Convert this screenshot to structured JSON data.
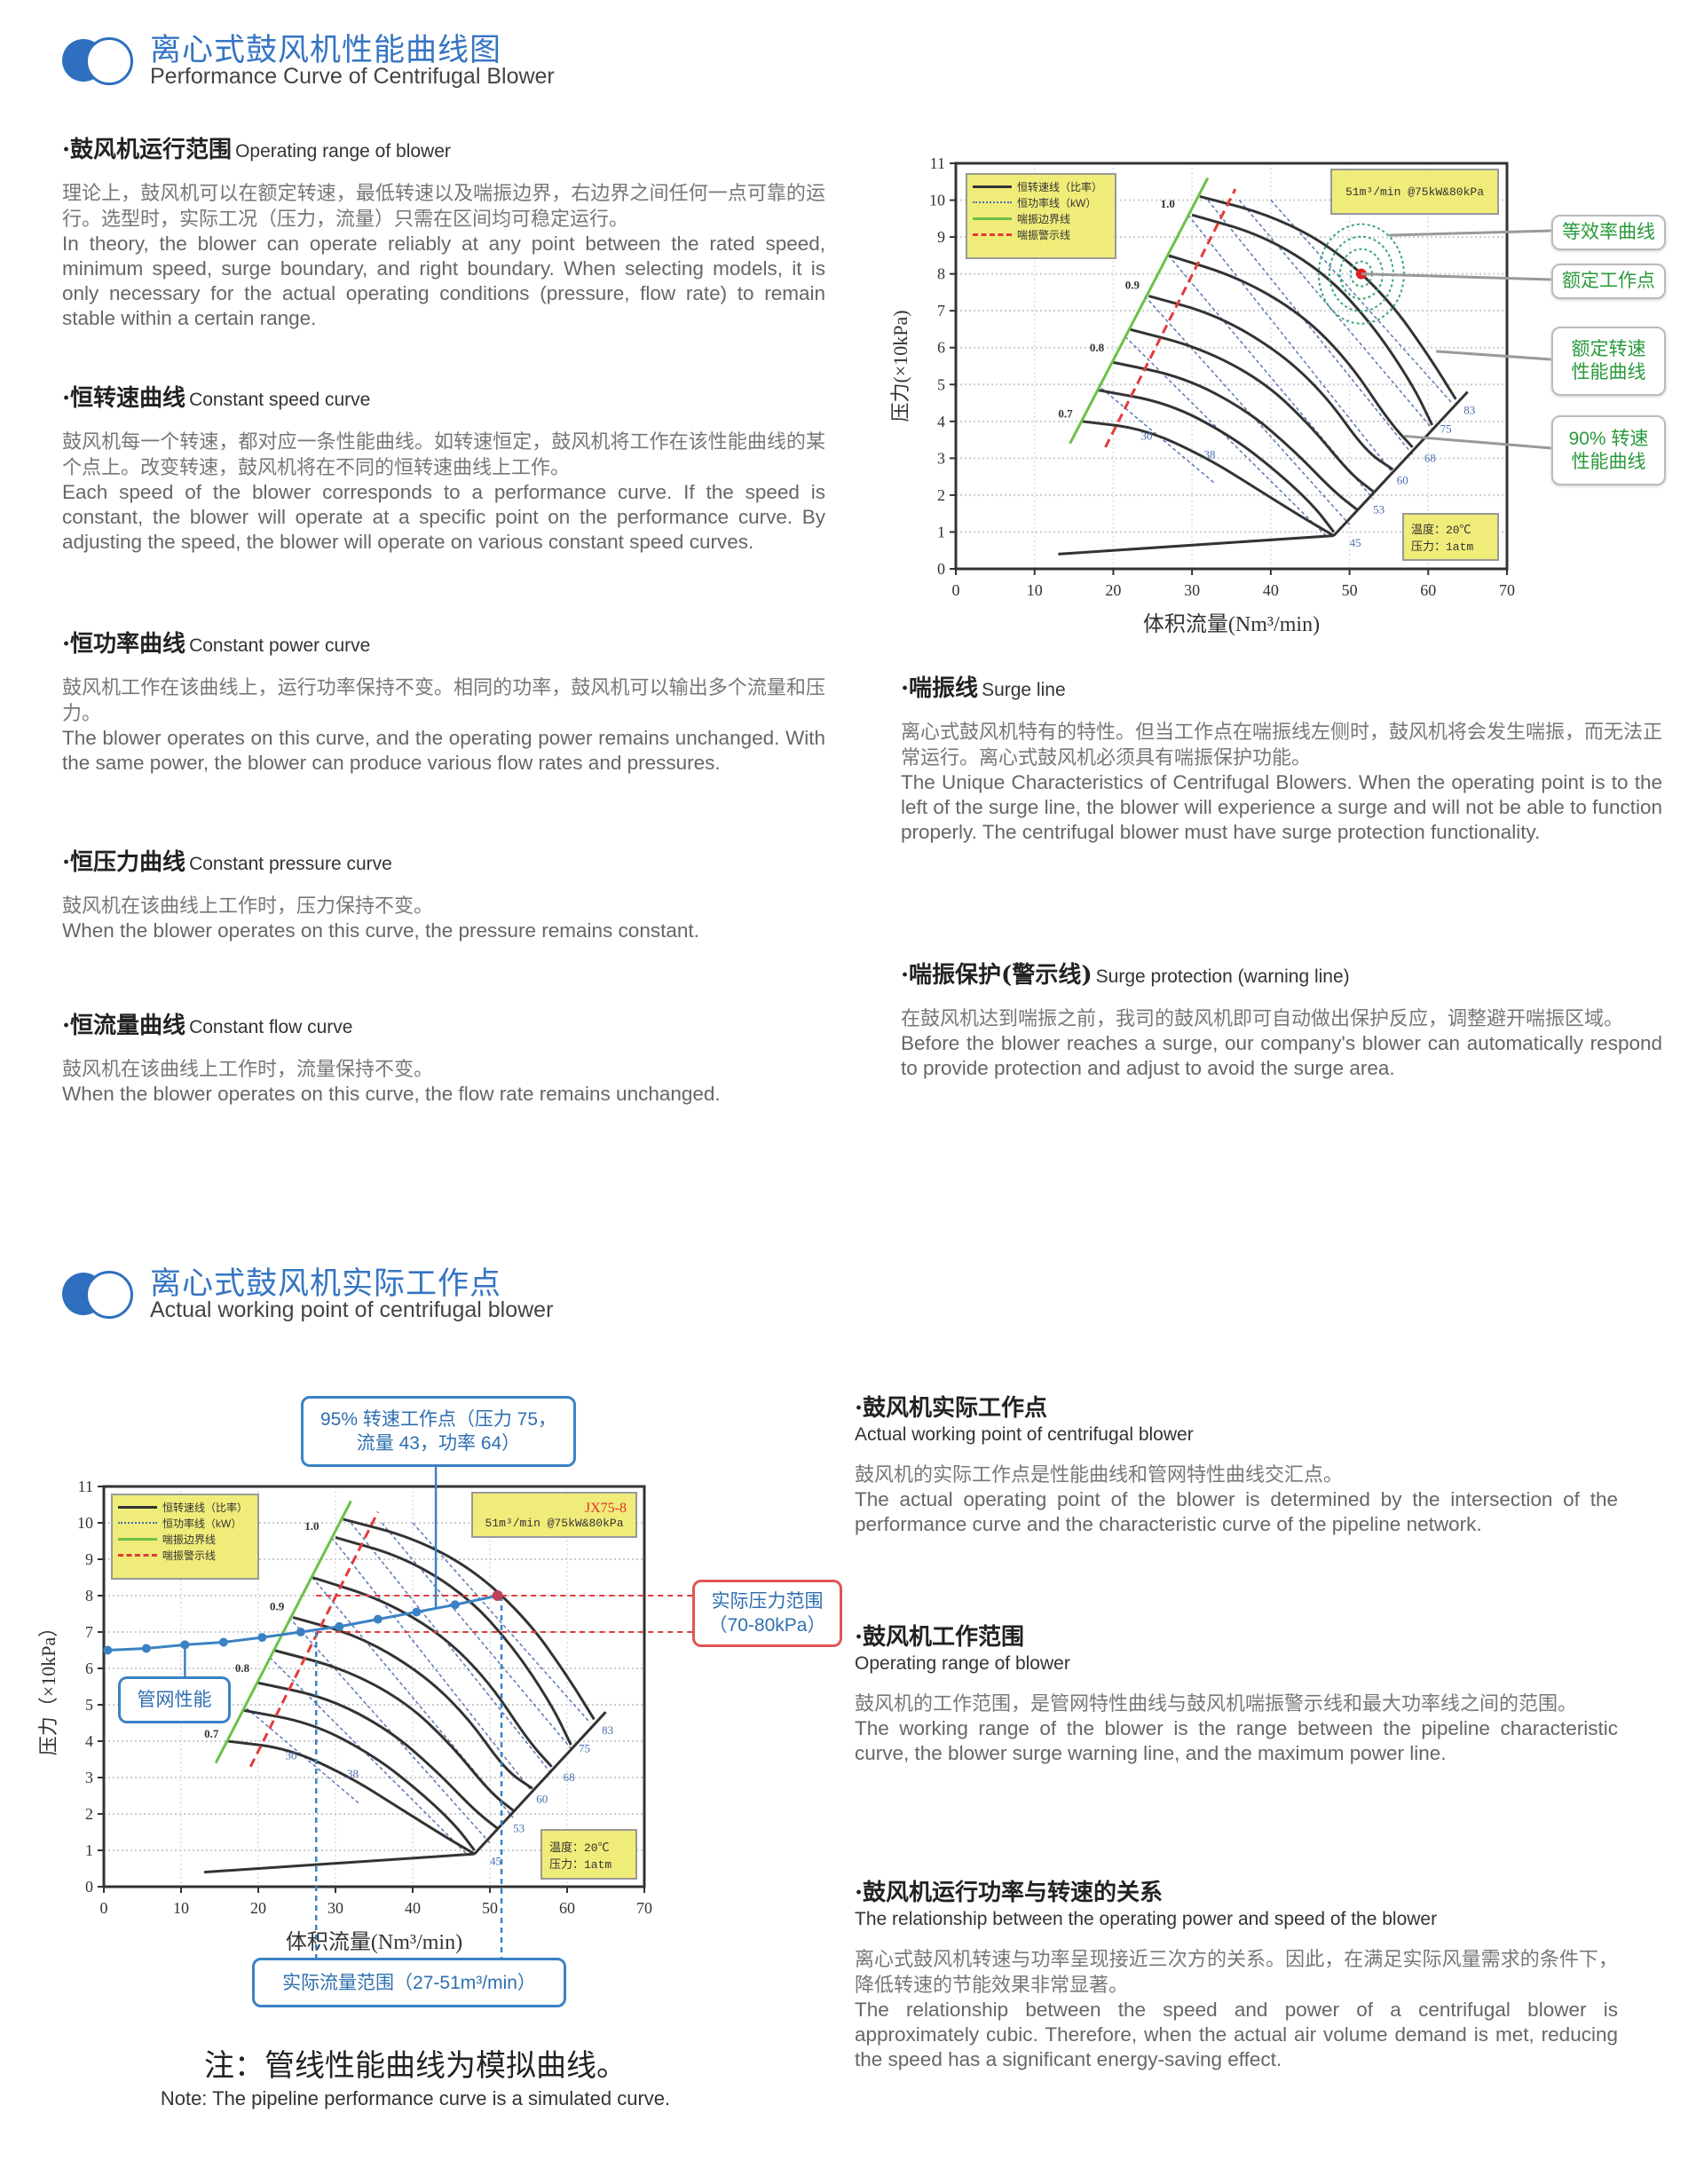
{
  "header1": {
    "title": "离心式鼓风机性能曲线图",
    "subtitle": "Performance Curve of Centrifugal Blower"
  },
  "left_sections": [
    {
      "title_zh": "·鼓风机运行范围",
      "title_en": "Operating range of blower",
      "body_zh": "理论上，鼓风机可以在额定转速，最低转速以及喘振边界，右边界之间任何一点可靠的运行。选型时，实际工况（压力，流量）只需在区间均可稳定运行。",
      "body_en": "In theory, the blower can operate reliably at any point between the rated speed, minimum speed, surge boundary, and right boundary. When selecting models, it is only necessary for the actual operating conditions (pressure, flow rate) to remain stable within a certain range."
    },
    {
      "title_zh": "·恒转速曲线",
      "title_en": "Constant speed curve",
      "body_zh": "鼓风机每一个转速，都对应一条性能曲线。如转速恒定，鼓风机将工作在该性能曲线的某个点上。改变转速，鼓风机将在不同的恒转速曲线上工作。",
      "body_en": "Each speed of the blower corresponds to a performance curve. If the speed is constant, the blower will operate at a specific point on the performance curve. By adjusting the speed, the blower will operate on various constant speed curves."
    },
    {
      "title_zh": "·恒功率曲线",
      "title_en": "Constant power curve",
      "body_zh": "鼓风机工作在该曲线上，运行功率保持不变。相同的功率，鼓风机可以输出多个流量和压力。",
      "body_en": "The blower operates on this curve, and the operating power remains unchanged. With the same power, the blower can produce various flow rates and pressures."
    },
    {
      "title_zh": "·恒压力曲线",
      "title_en": "Constant pressure curve",
      "body_zh": "鼓风机在该曲线上工作时，压力保持不变。",
      "body_en": "When the blower operates on this curve, the pressure remains constant."
    },
    {
      "title_zh": "·恒流量曲线",
      "title_en": "Constant flow curve",
      "body_zh": "鼓风机在该曲线上工作时，流量保持不变。",
      "body_en": "When the blower operates on this curve, the flow rate remains unchanged."
    }
  ],
  "right_sections": [
    {
      "title_zh": "·喘振线",
      "title_en": "Surge line",
      "body_zh": "离心式鼓风机特有的特性。但当工作点在喘振线左侧时，鼓风机将会发生喘振，而无法正常运行。离心式鼓风机必须具有喘振保护功能。",
      "body_en": "The Unique Characteristics of Centrifugal Blowers. When the operating point is to the left of the surge line, the blower will experience a surge and will not be able to function properly. The centrifugal blower must have surge protection functionality."
    },
    {
      "title_zh": "·喘振保护(警示线)",
      "title_en": "Surge protection (warning line)",
      "body_zh": "在鼓风机达到喘振之前，我司的鼓风机即可自动做出保护反应，调整避开喘振区域。",
      "body_en": "Before the blower reaches a surge, our company's blower can automatically respond to provide protection and adjust to avoid the surge area."
    }
  ],
  "header2": {
    "title": "离心式鼓风机实际工作点",
    "subtitle": "Actual working point of centrifugal blower"
  },
  "bottom_sections": [
    {
      "title_zh": "·鼓风机实际工作点",
      "title_en": "Actual working point of centrifugal blower",
      "body_zh": "鼓风机的实际工作点是性能曲线和管网特性曲线交汇点。",
      "body_en": "The actual operating point of the blower is determined by the intersection of the performance curve and the characteristic curve of the pipeline network."
    },
    {
      "title_zh": "·鼓风机工作范围",
      "title_en": "Operating range of blower",
      "body_zh": "鼓风机的工作范围，是管网特性曲线与鼓风机喘振警示线和最大功率线之间的范围。",
      "body_en": "The working range of the blower is the range between the pipeline characteristic curve, the blower surge warning line, and the maximum power line."
    },
    {
      "title_zh": "·鼓风机运行功率与转速的关系",
      "title_en": "The relationship between the operating power and speed of the blower",
      "body_zh": "离心式鼓风机转速与功率呈现接近三次方的关系。因此，在满足实际风量需求的条件下，降低转速的节能效果非常显著。",
      "body_en": "The relationship between the speed and power of a centrifugal blower is approximately cubic. Therefore, when the actual air volume demand is met, reducing the speed has a significant energy-saving effect."
    }
  ],
  "note": {
    "zh": "注：管线性能曲线为模拟曲线。",
    "en": "Note: The pipeline performance curve is a simulated curve."
  },
  "annotations_top": {
    "efficiency": "等效率曲线",
    "rated_point": "额定工作点",
    "rated_speed": "额定转速\n性能曲线",
    "speed_90": "90% 转速\n性能曲线"
  },
  "annotations_bottom": {
    "working_point": "95% 转速工作点（压力 75，\n流量 43，功率 64）",
    "pressure_range": "实际压力范围\n（70-80kPa）",
    "pipeline": "管网性能",
    "flow_range": "实际流量范围（27-51m³/min）"
  },
  "colors": {
    "accent": "#3575c3",
    "surge_boundary": "#6cc04a",
    "surge_warning": "#e23b3b",
    "pipeline": "#3b82c4",
    "legend_bg": "#f0ec7a",
    "annotation_text": "#2a9a3c"
  },
  "chart_data": [
    {
      "type": "line",
      "xlabel": "体积流量(Nm³/min)",
      "ylabel": "压力(×10kPa)",
      "xlim": [
        0,
        70
      ],
      "ylim": [
        0,
        11
      ],
      "xticks": [
        0,
        10,
        20,
        30,
        40,
        50,
        60,
        70
      ],
      "yticks": [
        0,
        1,
        2,
        3,
        4,
        5,
        6,
        7,
        8,
        9,
        10,
        11
      ],
      "grid": true,
      "legend": {
        "position": "top-left",
        "entries": [
          "恒转速线（比率）",
          "恒功率线（kW）",
          "喘振边界线",
          "喘振警示线"
        ]
      },
      "info": "51m³/min @75kW&80kPa",
      "conditions": [
        "温度：20℃",
        "压力：1atm"
      ],
      "speed_curves": [
        {
          "points": [
            [
              31,
              10.1
            ],
            [
              40,
              9.6
            ],
            [
              48,
              8.7
            ],
            [
              55,
              7.3
            ],
            [
              60,
              5.8
            ],
            [
              63.5,
              4.6
            ]
          ]
        },
        {
          "points": [
            [
              30,
              9.6
            ],
            [
              39,
              9.05
            ],
            [
              47,
              8.0
            ],
            [
              53,
              6.6
            ],
            [
              58,
              5.0
            ],
            [
              60.5,
              3.9
            ]
          ]
        },
        {
          "points": [
            [
              27,
              8.5
            ],
            [
              36,
              7.9
            ],
            [
              44,
              6.9
            ],
            [
              50,
              5.6
            ],
            [
              55,
              4.0
            ],
            [
              58,
              3.3
            ]
          ]
        },
        {
          "points": [
            [
              24.5,
              7.4
            ],
            [
              33,
              6.9
            ],
            [
              41,
              5.9
            ],
            [
              47,
              4.7
            ],
            [
              52,
              3.2
            ],
            [
              55.5,
              2.7
            ]
          ]
        },
        {
          "points": [
            [
              22,
              6.5
            ],
            [
              31,
              6.0
            ],
            [
              39,
              5.1
            ],
            [
              45,
              3.9
            ],
            [
              50,
              2.6
            ],
            [
              53,
              2.1
            ]
          ]
        },
        {
          "points": [
            [
              20,
              5.6
            ],
            [
              29,
              5.2
            ],
            [
              37,
              4.3
            ],
            [
              43,
              3.2
            ],
            [
              48,
              2.1
            ],
            [
              51,
              1.6
            ]
          ]
        },
        {
          "points": [
            [
              18,
              4.85
            ],
            [
              27,
              4.5
            ],
            [
              35,
              3.6
            ],
            [
              41,
              2.6
            ],
            [
              45.5,
              1.7
            ],
            [
              48,
              1.0
            ]
          ]
        },
        {
          "points": [
            [
              16,
              4.0
            ],
            [
              24,
              3.8
            ],
            [
              32,
              3.0
            ],
            [
              38,
              2.2
            ],
            [
              44,
              1.4
            ],
            [
              48,
              0.9
            ]
          ]
        }
      ],
      "speed_labels": [
        {
          "text": "1.0",
          "x": 26,
          "y": 9.8
        },
        {
          "text": "0.9",
          "x": 21.5,
          "y": 7.6
        },
        {
          "text": "0.8",
          "x": 17,
          "y": 5.9
        },
        {
          "text": "0.7",
          "x": 13,
          "y": 4.1
        }
      ],
      "min_speed_line": [
        [
          13,
          0.4
        ],
        [
          48,
          0.9
        ]
      ],
      "right_boundary": [
        [
          48,
          0.9
        ],
        [
          65,
          4.8
        ]
      ],
      "surge_boundary": [
        [
          14.5,
          3.4
        ],
        [
          32,
          10.6
        ]
      ],
      "surge_warning": [
        [
          19,
          3.3
        ],
        [
          35.5,
          10.3
        ]
      ],
      "power_lines": [
        {
          "label": "30",
          "from": [
            18.5,
            4.9
          ],
          "to": [
            33,
            2.3
          ]
        },
        {
          "label": "38",
          "from": [
            21.5,
            6.3
          ],
          "to": [
            47,
            0.9
          ]
        },
        {
          "label": "45",
          "from": [
            24,
            7.4
          ],
          "to": [
            50,
            1.2
          ]
        },
        {
          "label": "53",
          "from": [
            27,
            8.5
          ],
          "to": [
            53,
            1.9
          ]
        },
        {
          "label": "60",
          "from": [
            29.5,
            9.6
          ],
          "to": [
            55.5,
            2.6
          ]
        },
        {
          "label": "68",
          "from": [
            32,
            10.0
          ],
          "to": [
            58,
            3.1
          ]
        },
        {
          "label": "75",
          "from": [
            36,
            10.0
          ],
          "to": [
            60.5,
            3.8
          ]
        },
        {
          "label": "83",
          "from": [
            40,
            10.0
          ],
          "to": [
            63,
            4.5
          ]
        }
      ],
      "power_labels": [
        {
          "text": "30",
          "x": 23.5,
          "y": 3.5
        },
        {
          "text": "38",
          "x": 31.5,
          "y": 3.0
        },
        {
          "text": "45",
          "x": 50,
          "y": 0.6
        },
        {
          "text": "53",
          "x": 53,
          "y": 1.5
        },
        {
          "text": "60",
          "x": 56,
          "y": 2.3
        },
        {
          "text": "68",
          "x": 59.5,
          "y": 2.9
        },
        {
          "text": "75",
          "x": 61.5,
          "y": 3.7
        },
        {
          "text": "83",
          "x": 64.5,
          "y": 4.2
        }
      ],
      "rated_point": [
        51.5,
        8.0
      ],
      "efficiency_rings": [
        1,
        2,
        3,
        4
      ]
    },
    {
      "type": "line",
      "xlabel": "体积流量(Nm³/min)",
      "ylabel": "压力（×10kPa）",
      "xlim": [
        0,
        70
      ],
      "ylim": [
        0,
        11
      ],
      "xticks": [
        0,
        10,
        20,
        30,
        40,
        50,
        60,
        70
      ],
      "yticks": [
        0,
        1,
        2,
        3,
        4,
        5,
        6,
        7,
        8,
        9,
        10,
        11
      ],
      "grid": true,
      "legend": {
        "position": "top-left",
        "entries": [
          "恒转速线（比率）",
          "恒功率线（kW）",
          "喘振边界线",
          "喘振警示线"
        ]
      },
      "model": "JX75-8",
      "info": "51m³/min @75kW&80kPa",
      "conditions": [
        "温度：20℃",
        "压力：1atm"
      ],
      "pipeline_curve": [
        [
          0.5,
          6.5
        ],
        [
          5.5,
          6.55
        ],
        [
          10.5,
          6.65
        ],
        [
          15.5,
          6.72
        ],
        [
          20.5,
          6.85
        ],
        [
          25.5,
          7.0
        ],
        [
          30.5,
          7.15
        ],
        [
          35.5,
          7.35
        ],
        [
          40.5,
          7.55
        ],
        [
          45.5,
          7.75
        ],
        [
          51,
          8.0
        ]
      ],
      "pressure_range": [
        7,
        8
      ],
      "flow_range": [
        27.5,
        51.5
      ]
    }
  ]
}
